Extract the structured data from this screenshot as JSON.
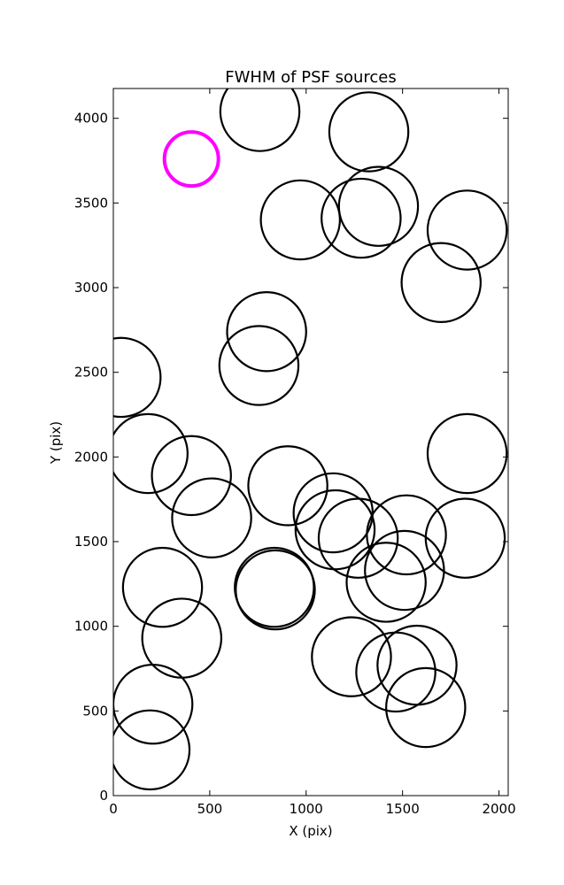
{
  "chart_data": {
    "type": "scatter",
    "title": "FWHM of PSF sources",
    "xlabel": "X (pix)",
    "ylabel": "Y (pix)",
    "xlim": [
      0,
      2048
    ],
    "ylim": [
      0,
      4176
    ],
    "xticks": [
      0,
      500,
      1000,
      1500,
      2000
    ],
    "yticks": [
      0,
      500,
      1000,
      1500,
      2000,
      2500,
      3000,
      3500,
      4000
    ],
    "grid": false,
    "legend": "none",
    "marker": "open circle",
    "source_color": "#000000",
    "highlight_color": "#ff00ff",
    "fwhm_radius": 205,
    "highlight": {
      "x": 405,
      "y": 3760,
      "r": 140
    },
    "sources": [
      {
        "x": 760,
        "y": 4040
      },
      {
        "x": 1325,
        "y": 3920
      },
      {
        "x": 970,
        "y": 3400
      },
      {
        "x": 1285,
        "y": 3410
      },
      {
        "x": 1375,
        "y": 3480
      },
      {
        "x": 1835,
        "y": 3340
      },
      {
        "x": 1700,
        "y": 3030
      },
      {
        "x": 795,
        "y": 2740
      },
      {
        "x": 755,
        "y": 2540
      },
      {
        "x": 40,
        "y": 2470
      },
      {
        "x": 180,
        "y": 2020
      },
      {
        "x": 1835,
        "y": 2020
      },
      {
        "x": 405,
        "y": 1890
      },
      {
        "x": 905,
        "y": 1830
      },
      {
        "x": 510,
        "y": 1640
      },
      {
        "x": 1140,
        "y": 1670
      },
      {
        "x": 1150,
        "y": 1570
      },
      {
        "x": 1270,
        "y": 1520
      },
      {
        "x": 1520,
        "y": 1540
      },
      {
        "x": 1825,
        "y": 1520
      },
      {
        "x": 1415,
        "y": 1260
      },
      {
        "x": 1510,
        "y": 1330
      },
      {
        "x": 835,
        "y": 1230
      },
      {
        "x": 840,
        "y": 1215
      },
      {
        "x": 255,
        "y": 1230
      },
      {
        "x": 355,
        "y": 930
      },
      {
        "x": 1235,
        "y": 820
      },
      {
        "x": 1465,
        "y": 730
      },
      {
        "x": 1575,
        "y": 770
      },
      {
        "x": 1620,
        "y": 520
      },
      {
        "x": 205,
        "y": 540
      },
      {
        "x": 190,
        "y": 270
      }
    ]
  }
}
